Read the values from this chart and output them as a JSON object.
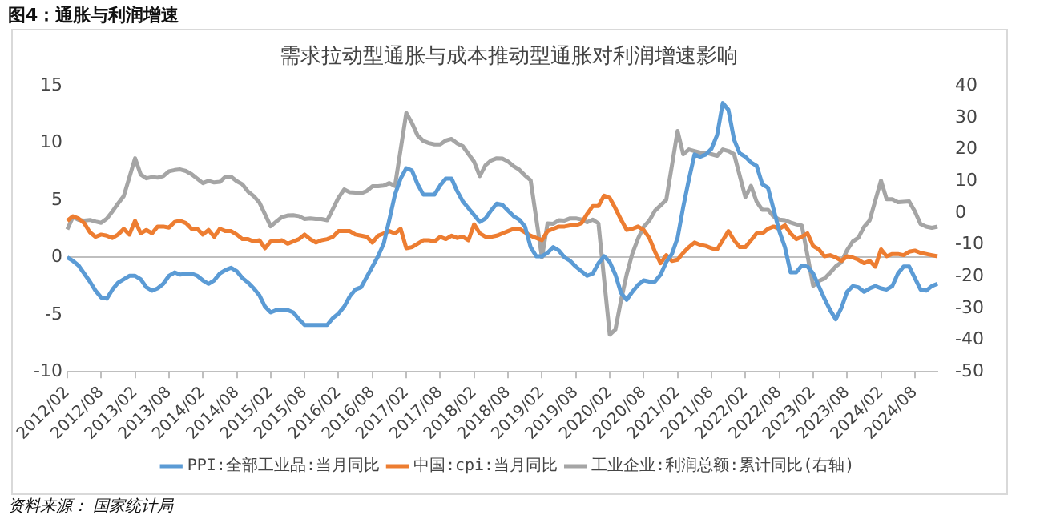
{
  "chart_data": {
    "type": "line",
    "title": "需求拉动型通胀与成本推动型通胀对利润增速影响",
    "annotations": [
      "图4：通胀与利润增速",
      "资料来源： 国家统计局"
    ],
    "categories": [
      "2012/02",
      null,
      null,
      null,
      null,
      null,
      "2012/08",
      null,
      null,
      null,
      null,
      null,
      "2013/02",
      null,
      null,
      null,
      null,
      null,
      "2013/08",
      null,
      null,
      null,
      null,
      null,
      "2014/02",
      null,
      null,
      null,
      null,
      null,
      "2014/08",
      null,
      null,
      null,
      null,
      null,
      "2015/02",
      null,
      null,
      null,
      null,
      null,
      "2015/08",
      null,
      null,
      null,
      null,
      null,
      "2016/02",
      null,
      null,
      null,
      null,
      null,
      "2016/08",
      null,
      null,
      null,
      null,
      null,
      "2017/02",
      null,
      null,
      null,
      null,
      null,
      "2017/08",
      null,
      null,
      null,
      null,
      null,
      "2018/02",
      null,
      null,
      null,
      null,
      null,
      "2018/08",
      null,
      null,
      null,
      null,
      null,
      "2019/02",
      null,
      null,
      null,
      null,
      null,
      "2019/08",
      null,
      null,
      null,
      null,
      null,
      "2020/02",
      null,
      null,
      null,
      null,
      null,
      "2020/08",
      null,
      null,
      null,
      null,
      null,
      "2021/02",
      null,
      null,
      null,
      null,
      null,
      "2021/08",
      null,
      null,
      null,
      null,
      null,
      "2022/02",
      null,
      null,
      null,
      null,
      null,
      "2022/08",
      null,
      null,
      null,
      null,
      null,
      "2023/02",
      null,
      null,
      null,
      null,
      null,
      "2023/08",
      null,
      null,
      null,
      null,
      null,
      "2024/02",
      null,
      null,
      null,
      null,
      null,
      "2024/08",
      null,
      null,
      null,
      null
    ],
    "series": [
      {
        "name": "PPI:全部工业品:当月同比",
        "color": "#5b9bd5",
        "values": [
          0.0,
          -0.3,
          -0.7,
          -1.4,
          -2.1,
          -2.9,
          -3.5,
          -3.6,
          -2.8,
          -2.2,
          -1.9,
          -1.6,
          -1.6,
          -1.9,
          -2.6,
          -2.9,
          -2.7,
          -2.3,
          -1.6,
          -1.3,
          -1.5,
          -1.4,
          -1.4,
          -1.6,
          -2.0,
          -2.3,
          -2.0,
          -1.4,
          -1.1,
          -0.9,
          -1.2,
          -1.8,
          -2.2,
          -2.7,
          -3.3,
          -4.3,
          -4.8,
          -4.6,
          -4.6,
          -4.6,
          -4.8,
          -5.4,
          -5.9,
          -5.9,
          -5.9,
          -5.9,
          -5.9,
          -5.3,
          -4.9,
          -4.3,
          -3.4,
          -2.8,
          -2.6,
          -1.7,
          -0.8,
          0.1,
          1.2,
          3.3,
          5.5,
          6.9,
          7.8,
          7.6,
          6.4,
          5.5,
          5.5,
          5.5,
          6.3,
          6.9,
          6.9,
          5.8,
          4.9,
          4.3,
          3.7,
          3.1,
          3.4,
          4.1,
          4.7,
          4.6,
          4.1,
          3.6,
          3.3,
          2.7,
          0.9,
          0.1,
          0.1,
          0.4,
          0.9,
          0.6,
          0.0,
          -0.3,
          -0.8,
          -1.2,
          -1.6,
          -1.4,
          -0.5,
          0.1,
          -0.4,
          -1.5,
          -3.1,
          -3.7,
          -3.0,
          -2.4,
          -2.0,
          -2.1,
          -2.1,
          -1.5,
          -0.4,
          0.3,
          1.7,
          4.4,
          6.8,
          9.0,
          8.8,
          9.0,
          9.5,
          10.7,
          13.5,
          12.9,
          10.3,
          9.1,
          8.8,
          8.3,
          8.0,
          6.4,
          6.1,
          4.2,
          2.3,
          0.9,
          -1.3,
          -1.3,
          -0.7,
          -0.8,
          -1.4,
          -2.5,
          -3.6,
          -4.6,
          -5.4,
          -4.4,
          -3.0,
          -2.5,
          -2.6,
          -3.0,
          -2.7,
          -2.5,
          -2.7,
          -2.8,
          -2.5,
          -1.4,
          -0.8,
          -0.8,
          -1.8,
          -2.8,
          -2.9,
          -2.5,
          -2.3
        ]
      },
      {
        "name": "中国:cpi:当月同比",
        "color": "#ed7d31",
        "values": [
          3.2,
          3.6,
          3.4,
          3.0,
          2.2,
          1.8,
          2.0,
          1.9,
          1.7,
          2.0,
          2.5,
          2.0,
          3.2,
          2.1,
          2.4,
          2.1,
          2.7,
          2.7,
          2.6,
          3.1,
          3.2,
          3.0,
          2.5,
          2.5,
          2.0,
          2.4,
          1.8,
          2.5,
          2.3,
          2.3,
          2.0,
          1.6,
          1.6,
          1.4,
          1.5,
          0.8,
          1.4,
          1.4,
          1.5,
          1.2,
          1.4,
          1.6,
          2.0,
          1.6,
          1.3,
          1.5,
          1.6,
          1.8,
          2.3,
          2.3,
          2.3,
          2.0,
          1.9,
          1.8,
          1.3,
          1.9,
          2.1,
          2.3,
          2.1,
          2.5,
          0.8,
          0.9,
          1.2,
          1.5,
          1.5,
          1.4,
          1.8,
          1.6,
          1.9,
          1.7,
          1.8,
          1.5,
          2.9,
          2.1,
          1.8,
          1.8,
          1.9,
          2.1,
          2.3,
          2.5,
          2.5,
          2.2,
          1.9,
          1.7,
          1.5,
          2.3,
          2.5,
          2.7,
          2.7,
          2.8,
          2.8,
          3.0,
          3.8,
          4.5,
          4.5,
          5.4,
          5.2,
          4.3,
          3.3,
          2.4,
          2.5,
          2.7,
          2.4,
          1.7,
          0.5,
          -0.5,
          0.2,
          -0.3,
          -0.2,
          0.4,
          0.9,
          1.3,
          1.1,
          1.0,
          0.8,
          0.7,
          1.5,
          2.3,
          1.5,
          0.9,
          0.9,
          1.5,
          2.1,
          2.1,
          2.5,
          2.7,
          2.5,
          2.8,
          2.1,
          1.6,
          1.8,
          2.1,
          1.0,
          0.7,
          0.1,
          0.2,
          0.0,
          -0.3,
          0.1,
          0.0,
          -0.2,
          -0.5,
          -0.3,
          -0.8,
          0.7,
          0.1,
          0.3,
          0.3,
          0.2,
          0.5,
          0.6,
          0.4,
          0.3,
          0.2,
          0.1
        ]
      },
      {
        "name": "工业企业:利润总额:累计同比(右轴)",
        "color": "#a5a5a5",
        "axis": "y2",
        "values": [
          -5.2,
          -1.3,
          -2.2,
          -2.4,
          -2.2,
          -2.7,
          -3.1,
          -1.8,
          0.5,
          3.0,
          5.3,
          null,
          17.2,
          12.1,
          10.9,
          11.3,
          11.1,
          11.6,
          13.1,
          13.5,
          13.7,
          13.2,
          12.2,
          null,
          9.4,
          10.1,
          9.6,
          9.8,
          11.4,
          11.4,
          10.0,
          9.0,
          6.7,
          5.3,
          3.3,
          null,
          -4.2,
          -2.7,
          -1.3,
          -0.8,
          -0.7,
          -1.0,
          -1.9,
          -1.7,
          -1.9,
          -1.9,
          -2.3,
          null,
          4.8,
          7.4,
          6.5,
          6.4,
          6.2,
          6.9,
          8.4,
          8.4,
          8.6,
          9.4,
          8.5,
          null,
          31.5,
          28.3,
          24.4,
          22.7,
          22.0,
          21.6,
          21.6,
          22.8,
          23.3,
          21.9,
          21.0,
          null,
          16.1,
          11.6,
          15.0,
          16.5,
          17.2,
          17.1,
          16.2,
          14.7,
          13.6,
          11.8,
          10.3,
          null,
          -14.0,
          -3.3,
          -3.4,
          -2.3,
          -2.4,
          -1.7,
          -1.7,
          -2.1,
          -2.9,
          -2.1,
          -3.3,
          null,
          -38.3,
          -36.7,
          -27.4,
          -19.3,
          -12.8,
          -8.1,
          -4.4,
          -2.4,
          0.7,
          2.4,
          4.1,
          null,
          25.8,
          18.5,
          20.0,
          19.5,
          19.0,
          19.0,
          18.5,
          18.0,
          20.0,
          19.5,
          18.5,
          null,
          5.0,
          8.5,
          3.5,
          1.0,
          1.0,
          -1.1,
          -2.1,
          -2.3,
          -3.0,
          -3.6,
          -4.0,
          null,
          -22.9,
          -21.4,
          -20.6,
          -18.8,
          -16.8,
          -15.5,
          -11.7,
          -9.0,
          -7.8,
          -4.4,
          -2.3,
          null,
          10.2,
          4.3,
          4.3,
          3.4,
          3.5,
          3.6,
          0.5,
          -3.5,
          -4.3,
          -4.7,
          -4.3
        ]
      }
    ],
    "ylim": [
      -10,
      15
    ],
    "yticks": [
      -10,
      -5,
      0,
      5,
      10,
      15
    ],
    "y2lim": [
      -50,
      40
    ],
    "y2ticks": [
      -50,
      -40,
      -30,
      -20,
      -10,
      0,
      10,
      20,
      30,
      40
    ],
    "legend": "bottom"
  }
}
